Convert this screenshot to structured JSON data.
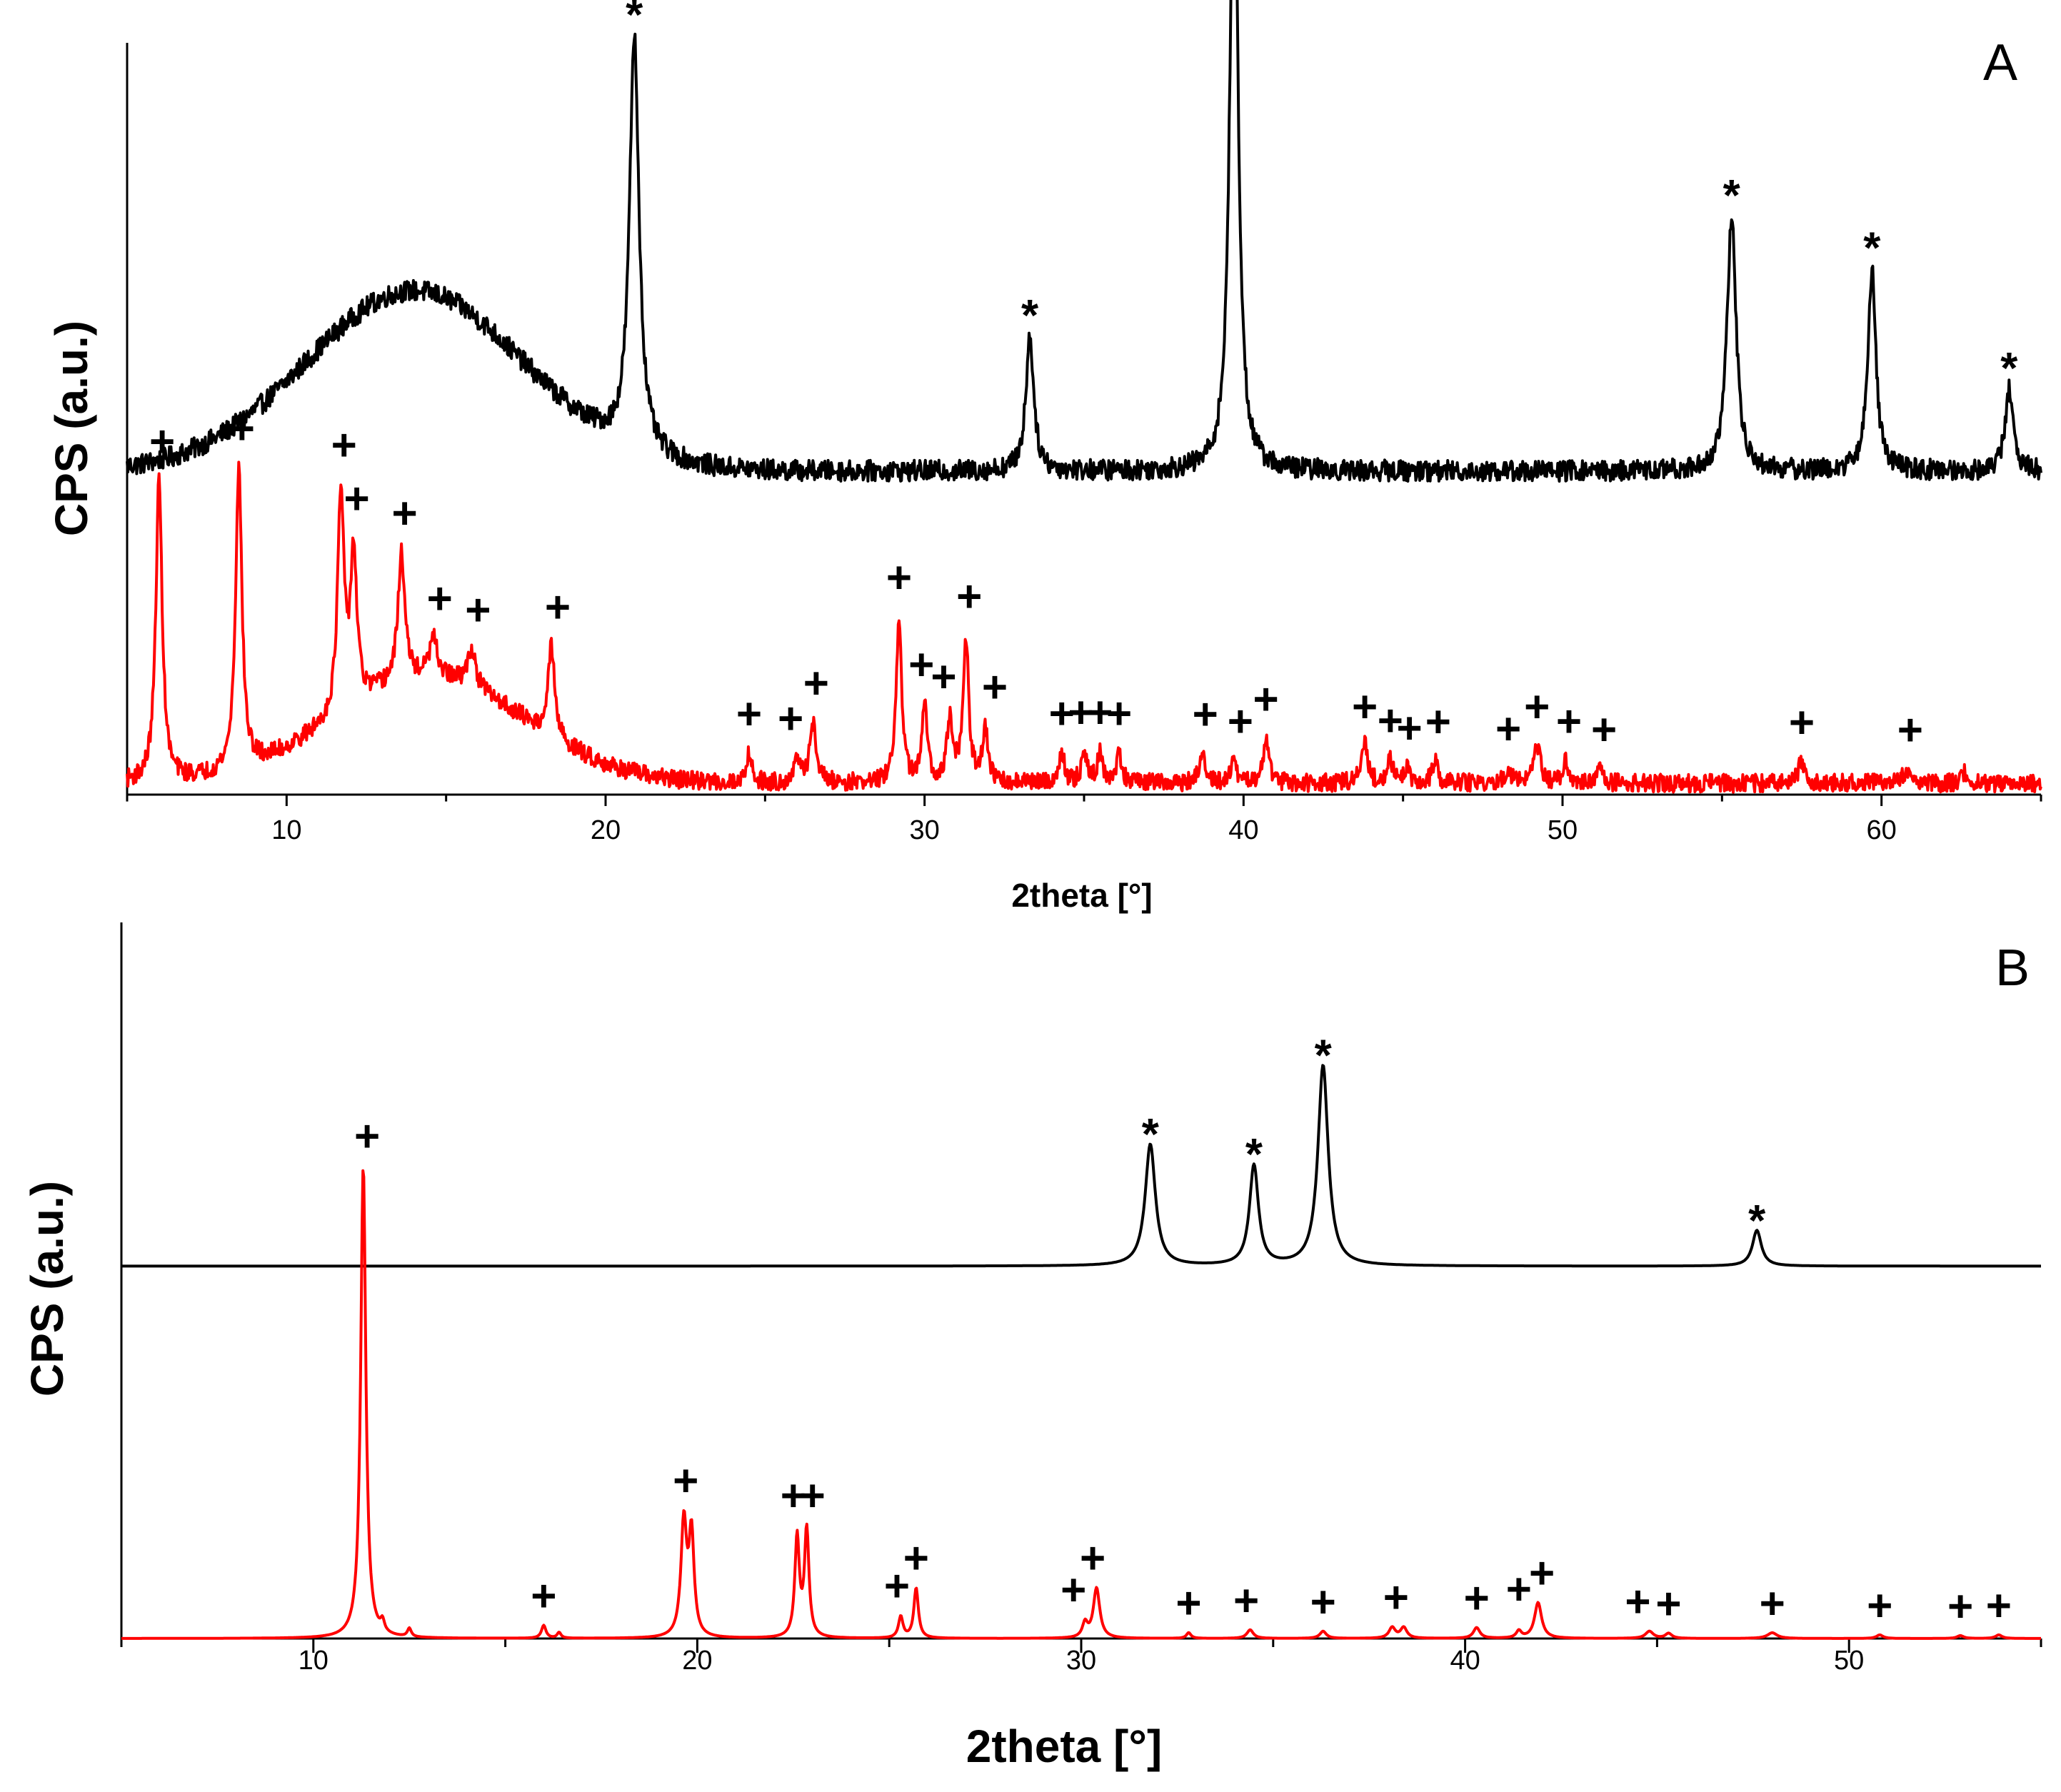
{
  "colors": {
    "top_trace": "#000000",
    "bottom_trace": "#ff0000",
    "axis": "#000000"
  },
  "chart_data": [
    {
      "type": "line",
      "panel_label": "A",
      "xlabel": "2theta [°]",
      "ylabel": "CPS (a.u.)",
      "xlim": [
        5,
        65
      ],
      "x_ticks": [
        10,
        20,
        30,
        40,
        50,
        60
      ],
      "y_ticks": [],
      "grid": false,
      "series": [
        {
          "color": "#000000",
          "baseline": 0.43,
          "noise": 0.014,
          "humps": [
            {
              "x": 14,
              "height": 0.24,
              "width": 3.4
            }
          ],
          "peaks": [
            {
              "x": 20.9,
              "height": 0.55,
              "width": 0.18
            },
            {
              "x": 33.3,
              "height": 0.18,
              "width": 0.15
            },
            {
              "x": 39.7,
              "height": 0.91,
              "width": 0.15
            },
            {
              "x": 55.3,
              "height": 0.34,
              "width": 0.17
            },
            {
              "x": 59.7,
              "height": 0.27,
              "width": 0.15
            },
            {
              "x": 64.0,
              "height": 0.11,
              "width": 0.15
            }
          ],
          "marker": "*",
          "marker_positions": [
            20.9,
            33.3,
            39.7,
            55.3,
            59.7,
            64.0
          ]
        },
        {
          "color": "#ff0000",
          "baseline": 0.015,
          "noise": 0.012,
          "humps": [
            {
              "x": 14.5,
              "height": 0.14,
              "width": 3.0
            }
          ],
          "peaks": [
            {
              "x": 6.0,
              "height": 0.4,
              "width": 0.12
            },
            {
              "x": 8.5,
              "height": 0.4,
              "width": 0.12
            },
            {
              "x": 11.7,
              "height": 0.29,
              "width": 0.12
            },
            {
              "x": 12.1,
              "height": 0.2,
              "width": 0.12
            },
            {
              "x": 13.6,
              "height": 0.17,
              "width": 0.13
            },
            {
              "x": 14.6,
              "height": 0.05,
              "width": 0.15
            },
            {
              "x": 15.8,
              "height": 0.05,
              "width": 0.15
            },
            {
              "x": 18.3,
              "height": 0.12,
              "width": 0.12
            },
            {
              "x": 24.5,
              "height": 0.04,
              "width": 0.1
            },
            {
              "x": 26.0,
              "height": 0.03,
              "width": 0.1
            },
            {
              "x": 26.5,
              "height": 0.08,
              "width": 0.12
            },
            {
              "x": 29.2,
              "height": 0.22,
              "width": 0.1
            },
            {
              "x": 30.0,
              "height": 0.1,
              "width": 0.1
            },
            {
              "x": 30.8,
              "height": 0.08,
              "width": 0.12
            },
            {
              "x": 31.3,
              "height": 0.19,
              "width": 0.1
            },
            {
              "x": 31.9,
              "height": 0.07,
              "width": 0.1
            },
            {
              "x": 34.3,
              "height": 0.04,
              "width": 0.1
            },
            {
              "x": 35.0,
              "height": 0.04,
              "width": 0.1
            },
            {
              "x": 35.5,
              "height": 0.04,
              "width": 0.1
            },
            {
              "x": 36.1,
              "height": 0.04,
              "width": 0.1
            },
            {
              "x": 38.7,
              "height": 0.04,
              "width": 0.1
            },
            {
              "x": 39.7,
              "height": 0.03,
              "width": 0.1
            },
            {
              "x": 40.7,
              "height": 0.06,
              "width": 0.1
            },
            {
              "x": 43.8,
              "height": 0.05,
              "width": 0.12
            },
            {
              "x": 44.6,
              "height": 0.03,
              "width": 0.1
            },
            {
              "x": 45.1,
              "height": 0.02,
              "width": 0.1
            },
            {
              "x": 46.0,
              "height": 0.03,
              "width": 0.1
            },
            {
              "x": 48.3,
              "height": 0.02,
              "width": 0.1
            },
            {
              "x": 49.2,
              "height": 0.05,
              "width": 0.12
            },
            {
              "x": 50.1,
              "height": 0.03,
              "width": 0.1
            },
            {
              "x": 51.2,
              "height": 0.02,
              "width": 0.1
            },
            {
              "x": 57.5,
              "height": 0.03,
              "width": 0.12
            },
            {
              "x": 60.8,
              "height": 0.02,
              "width": 0.12
            },
            {
              "x": 62.6,
              "height": 0.015,
              "width": 0.1
            }
          ],
          "marker": "+",
          "marker_positions": [
            6.1,
            8.6,
            11.8,
            12.2,
            13.7,
            14.8,
            16.0,
            18.5,
            24.5,
            25.8,
            26.6,
            29.2,
            29.9,
            30.6,
            31.4,
            32.2,
            34.3,
            34.9,
            35.5,
            36.1,
            38.8,
            39.9,
            40.7,
            43.8,
            44.6,
            45.2,
            46.1,
            48.3,
            49.2,
            50.2,
            51.3,
            57.5,
            60.9
          ]
        }
      ]
    },
    {
      "type": "line",
      "panel_label": "B",
      "xlabel": "2theta [°]",
      "ylabel": "CPS (a.u.)",
      "xlim": [
        5,
        55
      ],
      "x_ticks": [
        10,
        20,
        30,
        40,
        50
      ],
      "y_ticks": [],
      "grid": false,
      "series": [
        {
          "color": "#000000",
          "baseline": 0.52,
          "noise": 0,
          "humps": [],
          "peaks": [
            {
              "x": 31.8,
              "height": 0.17,
              "width": 0.16
            },
            {
              "x": 34.5,
              "height": 0.14,
              "width": 0.14
            },
            {
              "x": 36.3,
              "height": 0.28,
              "width": 0.16
            },
            {
              "x": 47.6,
              "height": 0.05,
              "width": 0.14
            }
          ],
          "marker": "*",
          "marker_positions": [
            31.8,
            34.5,
            36.3,
            47.6
          ]
        },
        {
          "color": "#ff0000",
          "baseline": 0.0,
          "noise": 0,
          "humps": [],
          "peaks": [
            {
              "x": 11.3,
              "height": 0.66,
              "width": 0.08
            },
            {
              "x": 11.8,
              "height": 0.015,
              "width": 0.06
            },
            {
              "x": 12.5,
              "height": 0.012,
              "width": 0.06
            },
            {
              "x": 16.0,
              "height": 0.018,
              "width": 0.07
            },
            {
              "x": 16.4,
              "height": 0.008,
              "width": 0.06
            },
            {
              "x": 19.65,
              "height": 0.16,
              "width": 0.09
            },
            {
              "x": 19.85,
              "height": 0.14,
              "width": 0.08
            },
            {
              "x": 22.6,
              "height": 0.14,
              "width": 0.07
            },
            {
              "x": 22.85,
              "height": 0.15,
              "width": 0.07
            },
            {
              "x": 25.3,
              "height": 0.03,
              "width": 0.07
            },
            {
              "x": 25.7,
              "height": 0.07,
              "width": 0.07
            },
            {
              "x": 30.1,
              "height": 0.02,
              "width": 0.08
            },
            {
              "x": 30.4,
              "height": 0.07,
              "width": 0.1
            },
            {
              "x": 32.8,
              "height": 0.008,
              "width": 0.07
            },
            {
              "x": 34.4,
              "height": 0.012,
              "width": 0.1
            },
            {
              "x": 36.3,
              "height": 0.01,
              "width": 0.1
            },
            {
              "x": 38.1,
              "height": 0.015,
              "width": 0.1
            },
            {
              "x": 38.4,
              "height": 0.015,
              "width": 0.1
            },
            {
              "x": 40.3,
              "height": 0.015,
              "width": 0.1
            },
            {
              "x": 41.4,
              "height": 0.01,
              "width": 0.08
            },
            {
              "x": 41.9,
              "height": 0.05,
              "width": 0.11
            },
            {
              "x": 44.8,
              "height": 0.01,
              "width": 0.12
            },
            {
              "x": 45.3,
              "height": 0.007,
              "width": 0.1
            },
            {
              "x": 48.0,
              "height": 0.008,
              "width": 0.15
            },
            {
              "x": 50.8,
              "height": 0.005,
              "width": 0.1
            },
            {
              "x": 52.9,
              "height": 0.004,
              "width": 0.1
            },
            {
              "x": 53.9,
              "height": 0.005,
              "width": 0.1
            }
          ],
          "marker": "+",
          "marker_positions": [
            11.4,
            16.0,
            19.7,
            22.5,
            23.0,
            25.2,
            25.7,
            29.8,
            30.3,
            32.8,
            34.3,
            36.3,
            38.2,
            40.3,
            41.4,
            42.0,
            44.5,
            45.3,
            48.0,
            50.8,
            52.9,
            53.9
          ]
        }
      ]
    }
  ]
}
